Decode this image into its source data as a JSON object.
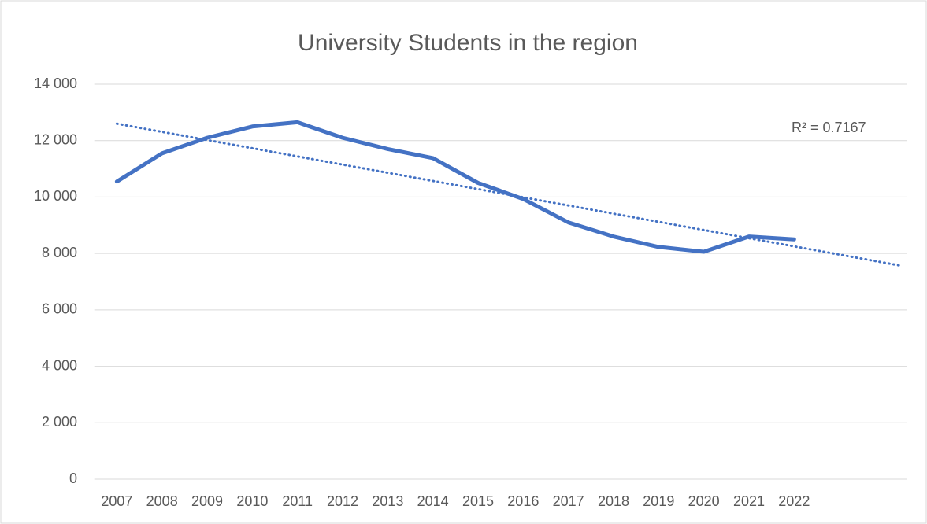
{
  "chart_data": {
    "type": "line",
    "title": "University Students in the region",
    "categories": [
      "2007",
      "2008",
      "2009",
      "2010",
      "2011",
      "2012",
      "2013",
      "2014",
      "2015",
      "2016",
      "2017",
      "2018",
      "2019",
      "2020",
      "2021",
      "2022",
      null,
      null
    ],
    "series": [
      {
        "name": "University Students",
        "color": "#4472c4",
        "values": [
          10550,
          11550,
          12100,
          12500,
          12650,
          12100,
          11700,
          11380,
          10500,
          9930,
          9100,
          8600,
          8230,
          8060,
          8600,
          8500,
          null,
          null
        ]
      }
    ],
    "trendline": {
      "color": "#4472c4",
      "values": [
        12600,
        7560
      ],
      "annotation": "R² = 0.7167"
    },
    "ylim": [
      0,
      14000
    ],
    "yticks": [
      0,
      {
        "value": 2000,
        "label": "2 000"
      },
      {
        "value": 4000,
        "label": "4 000"
      },
      {
        "value": 6000,
        "label": "6 000"
      },
      {
        "value": 8000,
        "label": "8 000"
      },
      {
        "value": 10000,
        "label": "10 000"
      },
      {
        "value": 12000,
        "label": "12 000"
      },
      {
        "value": 14000,
        "label": "14 000"
      }
    ],
    "grid": true,
    "legend": false
  }
}
